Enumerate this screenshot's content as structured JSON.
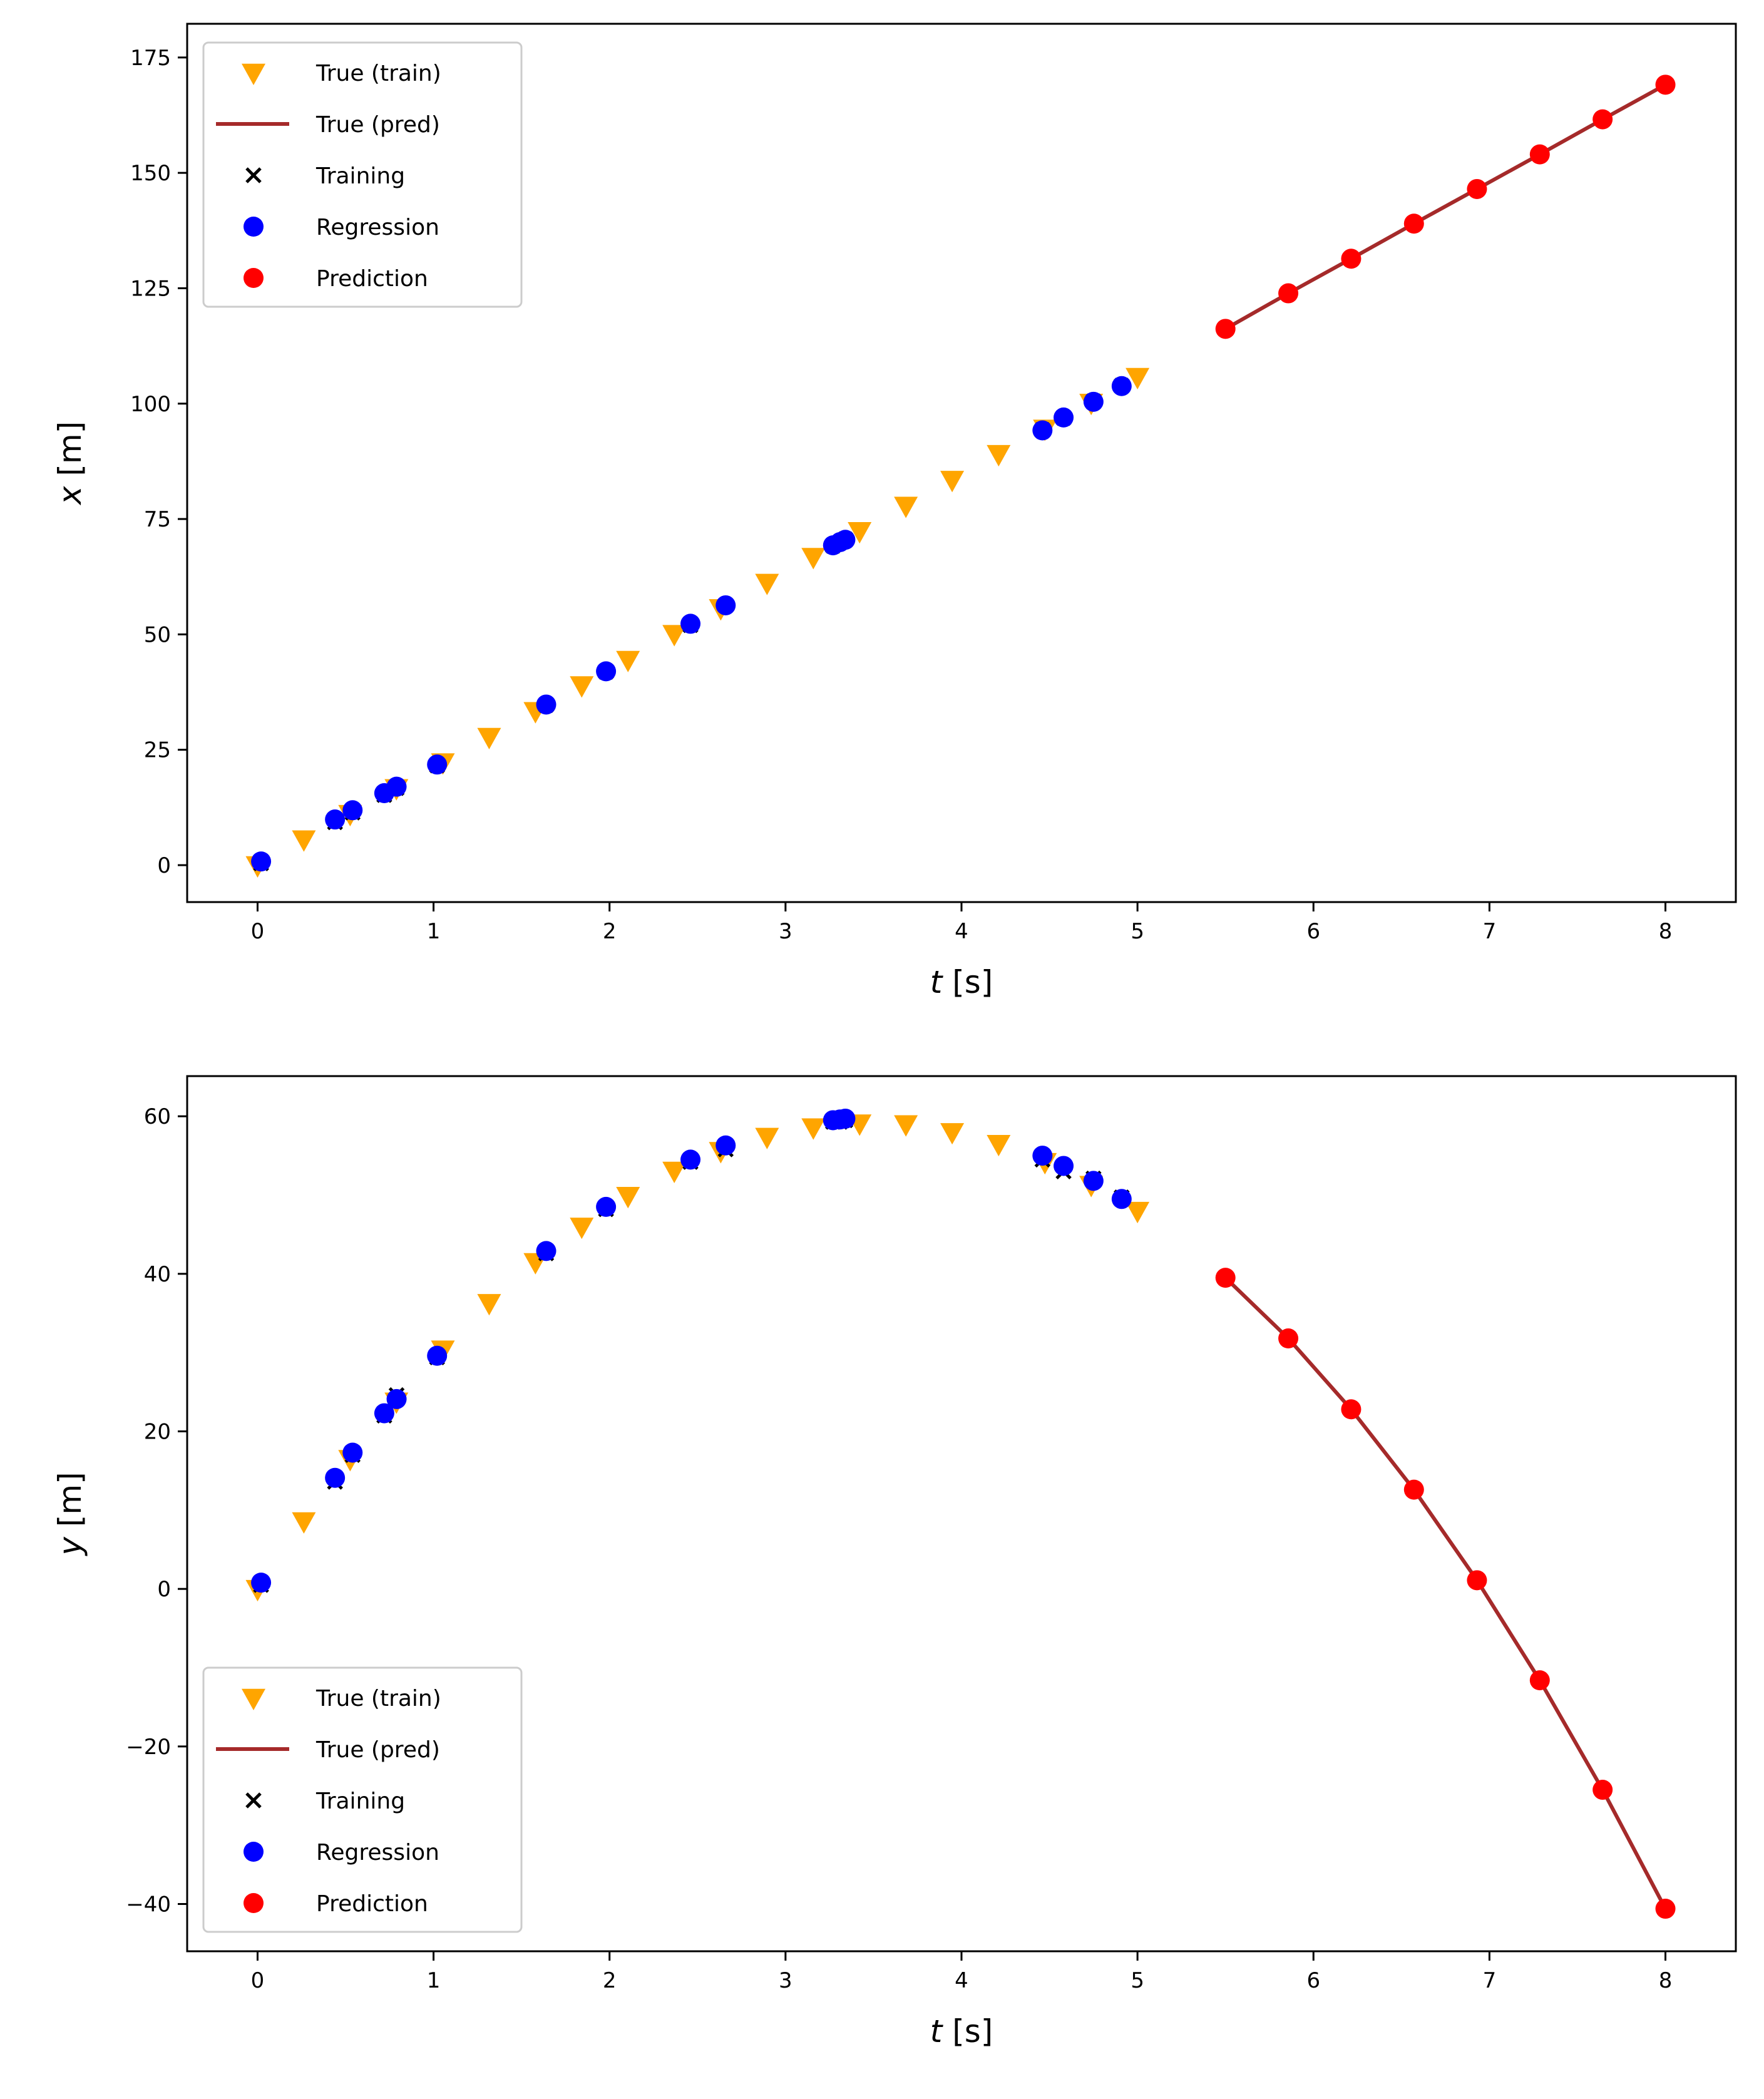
{
  "chart_data": [
    {
      "type": "scatter",
      "xlabel": "t [s]",
      "ylabel": "x [m]",
      "xlim": [
        -0.4,
        8.4
      ],
      "ylim": [
        -8.0,
        182.3
      ],
      "xticks": [
        0,
        1,
        2,
        3,
        4,
        5,
        6,
        7,
        8
      ],
      "yticks": [
        0,
        25,
        50,
        75,
        100,
        125,
        150,
        175
      ],
      "legend_position": "top-left",
      "legend": [
        "True (train)",
        "True (pred)",
        "Training",
        "Regression",
        "Prediction"
      ],
      "true_train": {
        "t": [
          0,
          0.263,
          0.526,
          0.789,
          1.053,
          1.316,
          1.579,
          1.842,
          2.105,
          2.368,
          2.632,
          2.895,
          3.158,
          3.421,
          3.684,
          3.947,
          4.211,
          4.474,
          4.737,
          5.0
        ],
        "v": [
          0,
          5.6,
          11.1,
          16.7,
          22.3,
          27.8,
          33.4,
          39.0,
          44.5,
          50.1,
          55.7,
          61.2,
          66.8,
          72.4,
          77.9,
          83.5,
          89.1,
          94.6,
          100.2,
          105.8
        ]
      },
      "training": {
        "t": [
          0.02,
          0.44,
          0.54,
          0.72,
          0.79,
          1.02,
          1.64,
          1.98,
          2.46,
          2.66,
          3.27,
          3.31,
          3.34,
          4.46,
          4.58,
          4.75,
          4.91
        ],
        "v": [
          0.4,
          9.3,
          11.4,
          15.2,
          16.7,
          21.6,
          34.7,
          41.9,
          52.0,
          56.3,
          69.2,
          70.0,
          70.6,
          94.3,
          96.9,
          100.5,
          103.9
        ]
      },
      "regression": {
        "t": [
          0.02,
          0.44,
          0.54,
          0.72,
          0.79,
          1.02,
          1.64,
          1.98,
          2.46,
          2.66,
          3.27,
          3.31,
          3.34,
          4.46,
          4.58,
          4.75,
          4.91
        ],
        "v": [
          0.8,
          9.9,
          11.9,
          15.6,
          17.0,
          21.8,
          34.8,
          42.0,
          52.3,
          56.3,
          69.3,
          70.0,
          70.5,
          94.2,
          97.0,
          100.4,
          103.8
        ]
      },
      "true_pred": {
        "t": [
          5.5,
          5.857,
          6.214,
          6.571,
          6.929,
          7.286,
          7.643,
          8.0
        ],
        "v": [
          116.2,
          123.9,
          131.4,
          139.0,
          146.5,
          154.0,
          161.6,
          169.1
        ]
      },
      "prediction": {
        "t": [
          5.5,
          5.857,
          6.214,
          6.571,
          6.929,
          7.286,
          7.643,
          8.0
        ],
        "v": [
          116.2,
          123.9,
          131.4,
          139.0,
          146.5,
          154.0,
          161.6,
          169.1
        ]
      }
    },
    {
      "type": "scatter",
      "xlabel": "t [s]",
      "ylabel": "y [m]",
      "xlim": [
        -0.4,
        8.4
      ],
      "ylim": [
        -46.0,
        65.1
      ],
      "xticks": [
        0,
        1,
        2,
        3,
        4,
        5,
        6,
        7,
        8
      ],
      "yticks": [
        -40,
        -20,
        0,
        20,
        40,
        60
      ],
      "legend_position": "bottom-left",
      "legend": [
        "True (train)",
        "True (pred)",
        "Training",
        "Regression",
        "Prediction"
      ],
      "true_train": {
        "t": [
          0,
          0.263,
          0.526,
          0.789,
          1.053,
          1.316,
          1.579,
          1.842,
          2.105,
          2.368,
          2.632,
          2.895,
          3.158,
          3.421,
          3.684,
          3.947,
          4.211,
          4.474,
          4.737,
          5.0
        ],
        "v": [
          0,
          8.6,
          16.5,
          23.8,
          30.4,
          36.3,
          41.5,
          46.0,
          49.9,
          53.1,
          55.6,
          57.4,
          58.6,
          59.1,
          59.0,
          58.0,
          56.5,
          54.2,
          51.3,
          48.0
        ]
      },
      "training": {
        "t": [
          0.02,
          0.44,
          0.54,
          0.72,
          0.79,
          1.02,
          1.64,
          1.98,
          2.46,
          2.66,
          3.27,
          3.31,
          3.34,
          4.46,
          4.58,
          4.75,
          4.91
        ],
        "v": [
          0.5,
          13.6,
          17.0,
          22.0,
          24.6,
          29.4,
          42.6,
          48.2,
          54.2,
          55.8,
          59.3,
          59.3,
          59.5,
          54.5,
          53.0,
          52.1,
          49.7
        ]
      },
      "regression": {
        "t": [
          0.02,
          0.44,
          0.54,
          0.72,
          0.79,
          1.02,
          1.64,
          1.98,
          2.46,
          2.66,
          3.27,
          3.31,
          3.34,
          4.46,
          4.58,
          4.75,
          4.91
        ],
        "v": [
          0.8,
          14.1,
          17.3,
          22.3,
          24.1,
          29.6,
          42.9,
          48.5,
          54.5,
          56.3,
          59.5,
          59.6,
          59.7,
          55.0,
          53.7,
          51.8,
          49.5
        ]
      },
      "true_pred": {
        "t": [
          5.5,
          5.857,
          6.214,
          6.571,
          6.929,
          7.286,
          7.643,
          8.0
        ],
        "v": [
          39.5,
          31.8,
          22.8,
          12.6,
          1.1,
          -11.6,
          -25.5,
          -40.6
        ]
      },
      "prediction": {
        "t": [
          5.5,
          5.857,
          6.214,
          6.571,
          6.929,
          7.286,
          7.643,
          8.0
        ],
        "v": [
          39.5,
          31.8,
          22.8,
          12.6,
          1.1,
          -11.6,
          -25.5,
          -40.6
        ]
      }
    }
  ],
  "colors": {
    "true_train": "#ffa500",
    "true_pred": "#a52a2a",
    "training": "#000000",
    "regression": "#0000ff",
    "prediction": "#ff0000"
  }
}
